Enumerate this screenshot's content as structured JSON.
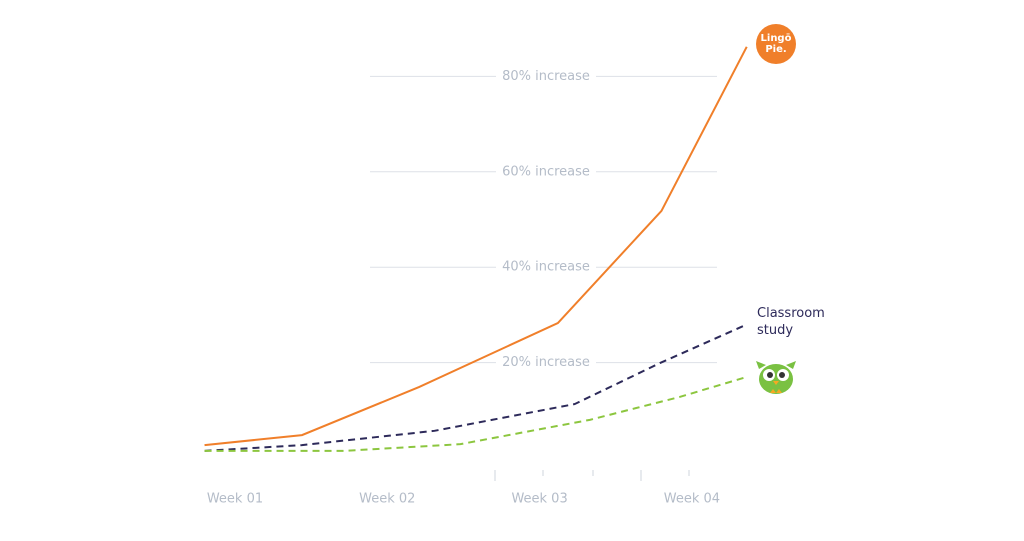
{
  "chart_data": {
    "type": "line",
    "xlim": [
      0.8,
      4.4
    ],
    "xticks": [
      {
        "value": 1,
        "label": "Week 01"
      },
      {
        "value": 2,
        "label": "Week 02"
      },
      {
        "value": 3,
        "label": "Week 03"
      },
      {
        "value": 4,
        "label": "Week 04"
      }
    ],
    "ylim": [
      0,
      90
    ],
    "yticks": [
      {
        "value": 20,
        "label": "20% increase"
      },
      {
        "value": 40,
        "label": "40% increase"
      },
      {
        "value": 60,
        "label": "60% increase"
      },
      {
        "value": 80,
        "label": "80% increase"
      }
    ],
    "grid": true,
    "series": [
      {
        "name": "Lingō Pie.",
        "color": "#f07f2a",
        "dashed": false,
        "x": [
          0.8,
          1.44,
          2.21,
          3.12,
          3.8,
          4.36
        ],
        "values": [
          2.7,
          4.8,
          14.9,
          28.3,
          51.8,
          86.2
        ]
      },
      {
        "name": "Classroom study",
        "color": "#2d2a5a",
        "dashed": true,
        "x": [
          0.8,
          1.44,
          2.31,
          3.23,
          3.79,
          4.34
        ],
        "values": [
          1.5,
          2.7,
          5.7,
          11.3,
          19.9,
          27.7
        ]
      },
      {
        "color": "#8cc63f",
        "dashed": true,
        "x": [
          0.8,
          1.72,
          2.48,
          3.33,
          3.92,
          4.34
        ],
        "values": [
          1.5,
          1.5,
          2.9,
          8.0,
          12.8,
          16.8
        ]
      }
    ]
  }
}
